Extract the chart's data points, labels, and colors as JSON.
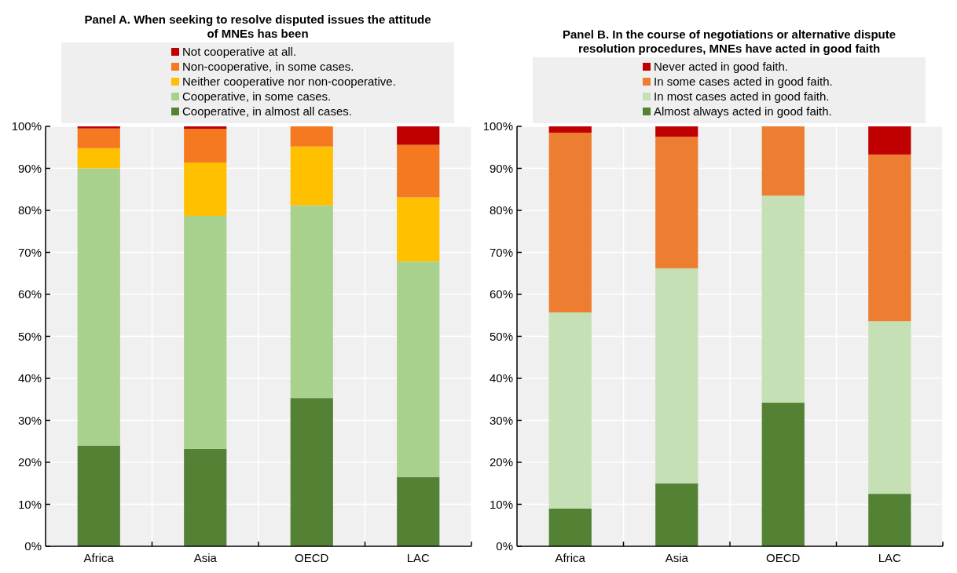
{
  "chart_data": [
    {
      "type": "bar",
      "title": "Panel A. When seeking to resolve disputed issues the attitude of MNEs has been",
      "categories": [
        "Africa",
        "Asia",
        "OECD",
        "LAC"
      ],
      "stacked": true,
      "grid": true,
      "legend": "top",
      "ylim": [
        0,
        100
      ],
      "yticks": [
        {
          "value": 0,
          "label": "0%"
        },
        {
          "value": 10,
          "label": "10%"
        },
        {
          "value": 20,
          "label": "20%"
        },
        {
          "value": 30,
          "label": "30%"
        },
        {
          "value": 40,
          "label": "40%"
        },
        {
          "value": 50,
          "label": "50%"
        },
        {
          "value": 60,
          "label": "60%"
        },
        {
          "value": 70,
          "label": "70%"
        },
        {
          "value": 80,
          "label": "80%"
        },
        {
          "value": 90,
          "label": "90%"
        },
        {
          "value": 100,
          "label": "100%"
        }
      ],
      "series": [
        {
          "name": "Cooperative, in almost all cases.",
          "color": "#548235",
          "values": [
            24,
            23.2,
            35.3,
            16.5
          ]
        },
        {
          "name": "Cooperative, in some cases.",
          "color": "#a9d18e",
          "values": [
            66,
            55.5,
            45.9,
            51.3
          ]
        },
        {
          "name": "Neither cooperative nor non-cooperative.",
          "color": "#ffc000",
          "values": [
            4.8,
            12.7,
            14,
            15.3
          ]
        },
        {
          "name": "Non-cooperative, in some cases.",
          "color": "#f47920",
          "values": [
            4.7,
            8,
            4.8,
            12.5
          ]
        },
        {
          "name": "Not cooperative at all.",
          "color": "#c00000",
          "values": [
            0.5,
            0.6,
            0,
            4.4
          ]
        }
      ]
    },
    {
      "type": "bar",
      "title": "Panel B. In the course of negotiations or alternative dispute resolution procedures, MNEs  have acted in good faith",
      "categories": [
        "Africa",
        "Asia",
        "OECD",
        "LAC"
      ],
      "stacked": true,
      "grid": true,
      "legend": "top",
      "ylim": [
        0,
        100
      ],
      "yticks": [
        {
          "value": 0,
          "label": "0%"
        },
        {
          "value": 10,
          "label": "10%"
        },
        {
          "value": 20,
          "label": "20%"
        },
        {
          "value": 30,
          "label": "30%"
        },
        {
          "value": 40,
          "label": "40%"
        },
        {
          "value": 50,
          "label": "50%"
        },
        {
          "value": 60,
          "label": "60%"
        },
        {
          "value": 70,
          "label": "70%"
        },
        {
          "value": 80,
          "label": "80%"
        },
        {
          "value": 90,
          "label": "90%"
        },
        {
          "value": 100,
          "label": "100%"
        }
      ],
      "series": [
        {
          "name": "Almost always acted in good faith.",
          "color": "#548235",
          "values": [
            9,
            15,
            34.2,
            12.5
          ]
        },
        {
          "name": "In most cases acted in good faith.",
          "color": "#c5e0b4",
          "values": [
            46.7,
            51.2,
            49.3,
            41.1
          ]
        },
        {
          "name": "In some cases acted in good faith.",
          "color": "#ed7d31",
          "values": [
            42.8,
            31.3,
            16.5,
            39.7
          ]
        },
        {
          "name": "Never acted in good faith.",
          "color": "#c00000",
          "values": [
            1.5,
            2.5,
            0,
            6.7
          ]
        }
      ]
    }
  ]
}
